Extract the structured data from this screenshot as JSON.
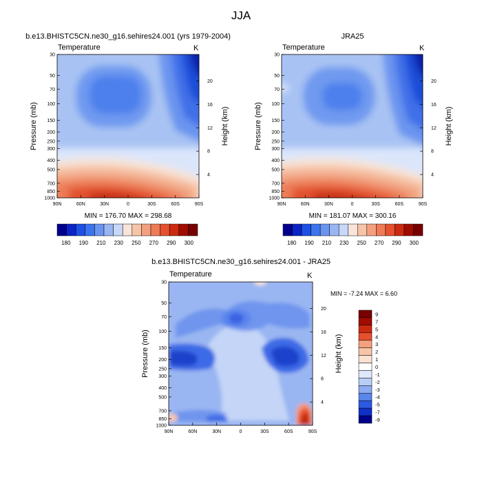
{
  "page_title": "JJA",
  "panels": [
    {
      "title": "b.e13.BHISTC5CN.ne30_g16.sehires24.001 (yrs 1979-2004)",
      "variable": "Temperature",
      "unit": "K",
      "stats": "MIN = 176.70  MAX = 298.68"
    },
    {
      "title": "JRA25",
      "variable": "Temperature",
      "unit": "K",
      "stats": "MIN = 181.07  MAX = 300.16"
    },
    {
      "title": "b.e13.BHISTC5CN.ne30_g16.sehires24.001 - JRA25",
      "variable": "Temperature",
      "unit": "K",
      "stats": "MIN =  -7.24  MAX =   6.60"
    }
  ],
  "chart_data": [
    {
      "type": "heatmap",
      "title": "b.e13.BHISTC5CN.ne30_g16.sehires24.001 (yrs 1979-2004)",
      "ylabel": "Pressure (mb)",
      "y2label": "Height (km)",
      "x_ticks": [
        "90N",
        "60N",
        "30N",
        "0",
        "30S",
        "60S",
        "90S"
      ],
      "y_ticks": [
        30,
        50,
        70,
        100,
        150,
        200,
        250,
        300,
        400,
        500,
        700,
        850,
        1000
      ],
      "y2_ticks": [
        20,
        16,
        12,
        8,
        4
      ],
      "min": 176.7,
      "max": 298.68,
      "colorbar_levels": [
        180,
        190,
        210,
        230,
        250,
        270,
        290,
        300
      ],
      "colorbar_labels": [
        "180",
        "190",
        "210",
        "230",
        "250",
        "270",
        "290",
        "300"
      ]
    },
    {
      "type": "heatmap",
      "title": "JRA25",
      "ylabel": "Pressure (mb)",
      "y2label": "Height (km)",
      "x_ticks": [
        "90N",
        "60N",
        "30N",
        "0",
        "30S",
        "60S",
        "90S"
      ],
      "y_ticks": [
        30,
        50,
        70,
        100,
        150,
        200,
        250,
        300,
        400,
        500,
        700,
        850,
        1000
      ],
      "y2_ticks": [
        20,
        16,
        12,
        8,
        4
      ],
      "min": 181.07,
      "max": 300.16,
      "colorbar_levels": [
        180,
        190,
        210,
        230,
        250,
        270,
        290,
        300
      ],
      "colorbar_labels": [
        "180",
        "190",
        "210",
        "230",
        "250",
        "270",
        "290",
        "300"
      ]
    },
    {
      "type": "heatmap",
      "title": "b.e13.BHISTC5CN.ne30_g16.sehires24.001 - JRA25",
      "ylabel": "Pressure (mb)",
      "y2label": "Height (km)",
      "x_ticks": [
        "90N",
        "60N",
        "30N",
        "0",
        "30S",
        "60S",
        "90S"
      ],
      "y_ticks": [
        30,
        50,
        70,
        100,
        150,
        200,
        250,
        300,
        400,
        500,
        700,
        850,
        1000
      ],
      "y2_ticks": [
        20,
        16,
        12,
        8,
        4
      ],
      "min": -7.24,
      "max": 6.6,
      "colorbar_levels": [
        9,
        7,
        5,
        4,
        3,
        2,
        1,
        0,
        -1,
        -2,
        -3,
        -4,
        -5,
        -7,
        -9
      ],
      "colorbar_labels": [
        "9",
        "7",
        "5",
        "4",
        "3",
        "2",
        "1",
        "0",
        "-1",
        "-2",
        "-3",
        "-4",
        "-5",
        "-7",
        "-9"
      ]
    }
  ],
  "palette": [
    "#00008c",
    "#0a24c8",
    "#1e50e6",
    "#3c74ee",
    "#6994f0",
    "#9ab6f2",
    "#c8d8f8",
    "#f8e4d8",
    "#f6c4a8",
    "#f4a080",
    "#ee7a56",
    "#e6502e",
    "#cc2a10",
    "#a00c00",
    "#780000"
  ],
  "diff_palette": [
    "#780000",
    "#a00c00",
    "#cc2a10",
    "#e6502e",
    "#f4a080",
    "#f6c4a8",
    "#fbe1d2",
    "#ffffff",
    "#dfe8fa",
    "#b9cef5",
    "#8cabf0",
    "#5a86ea",
    "#2c5ae4",
    "#1030c8",
    "#00008c"
  ]
}
